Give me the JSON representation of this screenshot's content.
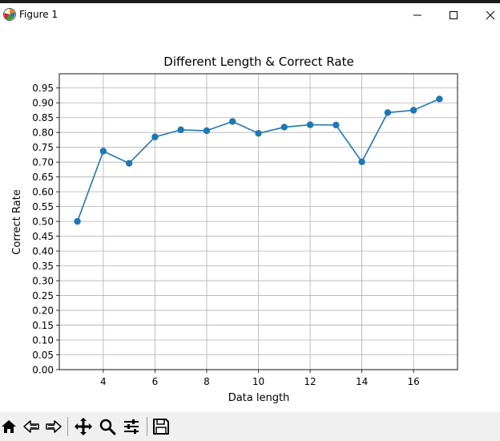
{
  "window": {
    "title": "Figure 1",
    "icon": "matplotlib-icon",
    "controls": [
      "minimize-icon",
      "maximize-icon",
      "close-icon"
    ]
  },
  "toolbar": {
    "buttons": [
      {
        "name": "home-button",
        "icon": "home-icon"
      },
      {
        "name": "back-button",
        "icon": "arrow-left-icon"
      },
      {
        "name": "forward-button",
        "icon": "arrow-right-icon"
      },
      {
        "name": "pan-button",
        "icon": "move-icon"
      },
      {
        "name": "zoom-button",
        "icon": "zoom-icon"
      },
      {
        "name": "configure-subplots-button",
        "icon": "sliders-icon"
      },
      {
        "name": "save-button",
        "icon": "save-icon"
      }
    ]
  },
  "chart_data": {
    "type": "line",
    "title": "Different Length & Correct Rate",
    "xlabel": "Data length",
    "ylabel": "Correct Rate",
    "x": [
      3,
      4,
      5,
      6,
      7,
      8,
      9,
      10,
      11,
      12,
      13,
      14,
      15,
      16,
      17
    ],
    "series": [
      {
        "values": [
          0.5,
          0.737,
          0.696,
          0.785,
          0.809,
          0.806,
          0.837,
          0.797,
          0.818,
          0.826,
          0.825,
          0.701,
          0.867,
          0.875,
          0.913
        ]
      }
    ],
    "xticks": [
      4,
      6,
      8,
      10,
      12,
      14,
      16
    ],
    "yticks": [
      0.0,
      0.05,
      0.1,
      0.15,
      0.2,
      0.25,
      0.3,
      0.35,
      0.4,
      0.45,
      0.5,
      0.55,
      0.6,
      0.65,
      0.7,
      0.75,
      0.8,
      0.85,
      0.9,
      0.95
    ],
    "xlim": [
      2.3,
      17.7
    ],
    "ylim": [
      0.0,
      0.998
    ],
    "grid": true,
    "color": "#1f77b4"
  }
}
